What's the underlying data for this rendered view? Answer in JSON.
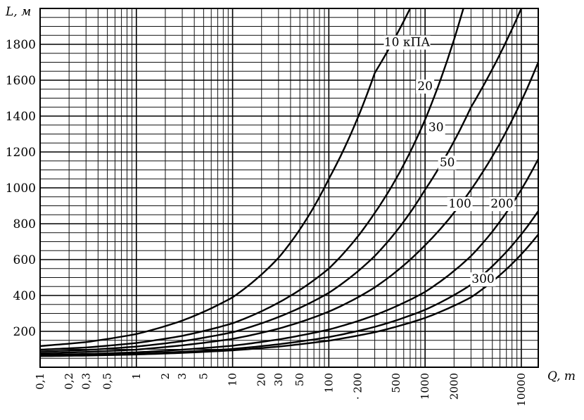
{
  "chart_data": {
    "type": "line",
    "title": "",
    "xlabel": "Q, т",
    "ylabel": "L, м",
    "x_scale": "log",
    "xlim": [
      0.1,
      15000
    ],
    "ylim": [
      0,
      2000
    ],
    "grid": true,
    "x_tick_labels": [
      "0,1",
      "0,2",
      "0,3",
      "0,5",
      "1",
      "2",
      "3",
      "5",
      "10",
      "20",
      "30",
      "50",
      "100",
      "· 200",
      "500",
      "1000",
      "2000",
      "10000"
    ],
    "x_tick_values": [
      0.1,
      0.2,
      0.3,
      0.5,
      1,
      2,
      3,
      5,
      10,
      20,
      30,
      50,
      100,
      200,
      500,
      1000,
      2000,
      10000
    ],
    "y_tick_labels": [
      "200",
      "400",
      "600",
      "800",
      "1000",
      "1200",
      "1400",
      "1600",
      "1800"
    ],
    "y_tick_values": [
      200,
      400,
      600,
      800,
      1000,
      1200,
      1400,
      1600,
      1800
    ],
    "series": [
      {
        "name": "10 кПА",
        "x": [
          0.1,
          0.3,
          1,
          3,
          10,
          30,
          100,
          300,
          700
        ],
        "y": [
          118,
          140,
          185,
          260,
          390,
          610,
          1050,
          1640,
          2000
        ]
      },
      {
        "name": "20",
        "x": [
          0.1,
          0.3,
          1,
          3,
          10,
          30,
          100,
          300,
          1000,
          2500
        ],
        "y": [
          98,
          110,
          135,
          175,
          245,
          360,
          550,
          860,
          1380,
          2000
        ]
      },
      {
        "name": "30",
        "x": [
          0.1,
          0.3,
          1,
          3,
          10,
          30,
          100,
          300,
          1000,
          3000,
          10000
        ],
        "y": [
          88,
          96,
          115,
          145,
          195,
          280,
          415,
          620,
          990,
          1450,
          2000
        ]
      },
      {
        "name": "50",
        "x": [
          0.1,
          0.3,
          1,
          3,
          10,
          30,
          100,
          300,
          1000,
          3000,
          15000
        ],
        "y": [
          78,
          85,
          98,
          122,
          158,
          215,
          310,
          445,
          680,
          990,
          1700
        ]
      },
      {
        "name": "100",
        "x": [
          0.1,
          0.3,
          1,
          3,
          10,
          30,
          100,
          300,
          1000,
          3000,
          15000
        ],
        "y": [
          70,
          74,
          83,
          98,
          120,
          155,
          210,
          290,
          420,
          620,
          1160
        ]
      },
      {
        "name": "200",
        "x": [
          0.1,
          0.3,
          1,
          3,
          10,
          30,
          100,
          300,
          1000,
          3000,
          15000
        ],
        "y": [
          65,
          68,
          75,
          86,
          102,
          128,
          168,
          225,
          320,
          460,
          870
        ]
      },
      {
        "name": "300",
        "x": [
          0.1,
          0.3,
          1,
          3,
          10,
          30,
          100,
          300,
          1000,
          3000,
          15000
        ],
        "y": [
          62,
          65,
          71,
          80,
          94,
          115,
          148,
          195,
          275,
          390,
          740
        ]
      }
    ],
    "curve_labels": [
      {
        "text": "10 кПА",
        "x": 650,
        "y": 1790
      },
      {
        "text": "20",
        "x": 1000,
        "y": 1545
      },
      {
        "text": "30",
        "x": 1300,
        "y": 1315
      },
      {
        "text": "50",
        "x": 1700,
        "y": 1120
      },
      {
        "text": "100",
        "x": 2300,
        "y": 890
      },
      {
        "text": "200",
        "x": 6300,
        "y": 890
      },
      {
        "text": "300",
        "x": 4000,
        "y": 470
      }
    ]
  }
}
